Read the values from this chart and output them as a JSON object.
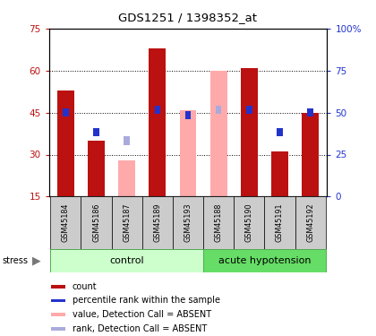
{
  "title": "GDS1251 / 1398352_at",
  "samples": [
    "GSM45184",
    "GSM45186",
    "GSM45187",
    "GSM45189",
    "GSM45193",
    "GSM45188",
    "GSM45190",
    "GSM45191",
    "GSM45192"
  ],
  "groups": {
    "control": [
      0,
      1,
      2,
      3,
      4
    ],
    "acute hypotension": [
      5,
      6,
      7,
      8
    ]
  },
  "red_bars": [
    53,
    35,
    null,
    68,
    null,
    null,
    61,
    31,
    45
  ],
  "pink_bars": [
    null,
    null,
    28,
    null,
    46,
    60,
    null,
    null,
    null
  ],
  "blue_squares": [
    45,
    38,
    null,
    46,
    44,
    46,
    46,
    38,
    45
  ],
  "lavender_squares": [
    null,
    null,
    35,
    null,
    null,
    46,
    null,
    null,
    null
  ],
  "ylim_left": [
    15,
    75
  ],
  "ylim_right": [
    0,
    100
  ],
  "yticks_left": [
    15,
    30,
    45,
    60,
    75
  ],
  "yticks_right": [
    0,
    25,
    50,
    75,
    100
  ],
  "ytick_labels_left": [
    "15",
    "30",
    "45",
    "60",
    "75"
  ],
  "ytick_labels_right": [
    "0",
    "25",
    "50",
    "75",
    "100%"
  ],
  "bar_width": 0.55,
  "red_color": "#bb1111",
  "pink_color": "#ffaaaa",
  "blue_color": "#2233cc",
  "lavender_color": "#aaaadd",
  "ctrl_green": "#ccffcc",
  "ah_green": "#66dd66",
  "label_bg": "#cccccc",
  "grid_lines": [
    30,
    45,
    60
  ],
  "legend_items": [
    [
      "#bb1111",
      "count"
    ],
    [
      "#2233cc",
      "percentile rank within the sample"
    ],
    [
      "#ffaaaa",
      "value, Detection Call = ABSENT"
    ],
    [
      "#aaaadd",
      "rank, Detection Call = ABSENT"
    ]
  ]
}
